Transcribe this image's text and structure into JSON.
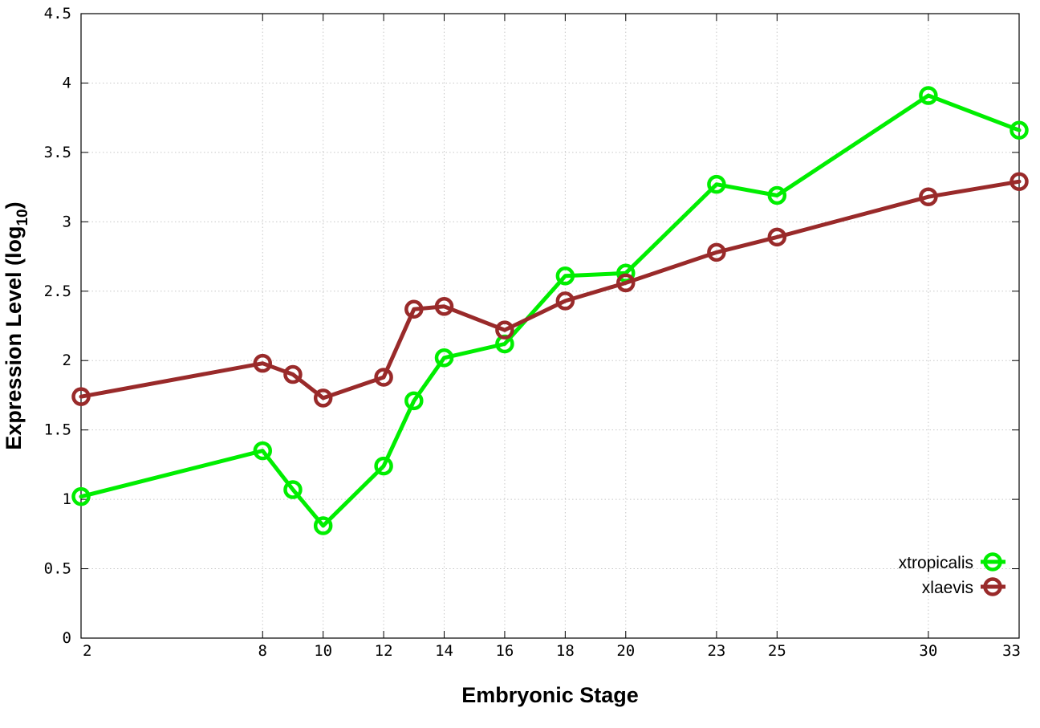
{
  "chart_data": {
    "type": "line",
    "xlabel": "Embryonic Stage",
    "ylabel_main": "Expression Level (log",
    "ylabel_sub": "10",
    "ylabel_close": ")",
    "x_ticks": [
      2,
      8,
      10,
      12,
      14,
      16,
      18,
      20,
      23,
      25,
      30,
      33
    ],
    "x_tick_labels": [
      "2",
      "8",
      "10",
      "12",
      "14",
      "16",
      "18",
      "20",
      "23",
      "25",
      "30",
      "33"
    ],
    "xlim": [
      2,
      33
    ],
    "y_ticks": [
      0,
      0.5,
      1,
      1.5,
      2,
      2.5,
      3,
      3.5,
      4,
      4.5
    ],
    "y_tick_labels": [
      "0",
      "0.5",
      "1",
      "1.5",
      "2",
      "2.5",
      "3",
      "3.5",
      "4",
      "4.5"
    ],
    "ylim": [
      0,
      4.5
    ],
    "grid": true,
    "legend_position": "bottom-right",
    "series": [
      {
        "name": "xtropicalis",
        "color": "#00ee00",
        "x": [
          2,
          8,
          9,
          10,
          12,
          13,
          14,
          16,
          18,
          20,
          23,
          25,
          30,
          33
        ],
        "values": [
          1.02,
          1.35,
          1.07,
          0.81,
          1.24,
          1.71,
          2.02,
          2.12,
          2.61,
          2.63,
          3.27,
          3.19,
          3.91,
          3.66
        ]
      },
      {
        "name": "xlaevis",
        "color": "#992a2a",
        "x": [
          2,
          8,
          9,
          10,
          12,
          13,
          14,
          16,
          18,
          20,
          23,
          25,
          30,
          33
        ],
        "values": [
          1.74,
          1.98,
          1.9,
          1.73,
          1.88,
          2.37,
          2.39,
          2.22,
          2.43,
          2.56,
          2.78,
          2.89,
          3.18,
          3.29
        ]
      }
    ]
  }
}
